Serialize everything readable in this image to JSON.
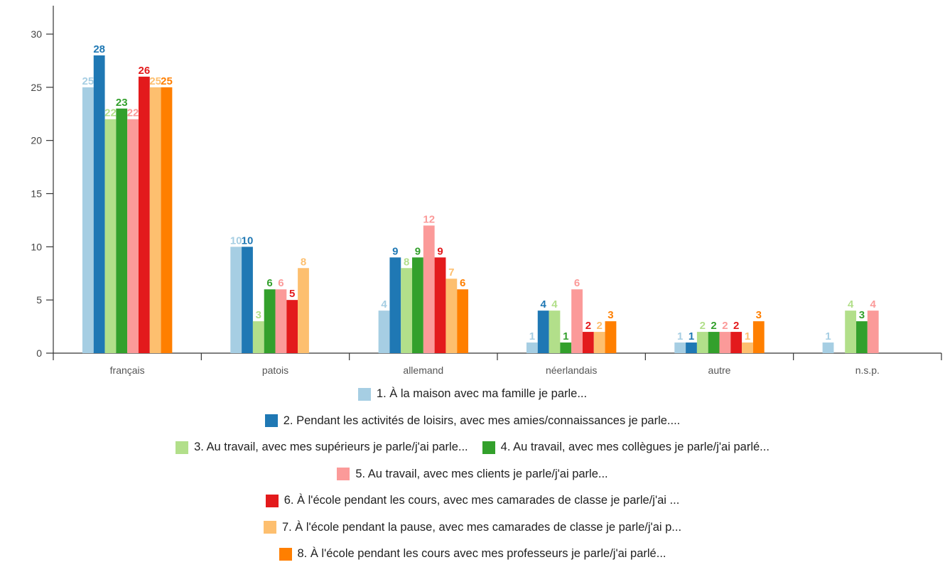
{
  "chart_data": {
    "type": "bar",
    "categories": [
      "français",
      "patois",
      "allemand",
      "néerlandais",
      "autre",
      "n.s.p."
    ],
    "ylim": [
      0,
      30
    ],
    "yticks": [
      0,
      5,
      10,
      15,
      20,
      25,
      30
    ],
    "grid": false,
    "legend_position": "bottom",
    "series": [
      {
        "name": "1. À la maison avec ma famille je parle...",
        "color": "#a6cee3",
        "values": [
          25,
          10,
          4,
          1,
          1,
          1
        ]
      },
      {
        "name": "2. Pendant les activités de loisirs, avec mes amies/connaissances je parle....",
        "color": "#1f78b4",
        "values": [
          28,
          10,
          9,
          4,
          1,
          null
        ]
      },
      {
        "name": "3. Au travail, avec mes supérieurs je parle/j'ai parle...",
        "color": "#b2df8a",
        "values": [
          22,
          3,
          8,
          4,
          2,
          4
        ]
      },
      {
        "name": "4. Au travail, avec mes collègues je parle/j'ai parlé...",
        "color": "#33a02c",
        "values": [
          23,
          6,
          9,
          1,
          2,
          3
        ]
      },
      {
        "name": "5. Au travail, avec mes clients je parle/j'ai parle...",
        "color": "#fb9a99",
        "values": [
          22,
          6,
          12,
          6,
          2,
          4
        ]
      },
      {
        "name": "6. À l'école pendant les cours, avec mes camarades de classe je parle/j'ai ...",
        "color": "#e31a1c",
        "values": [
          26,
          5,
          9,
          2,
          2,
          null
        ]
      },
      {
        "name": "7. À l'école pendant la pause, avec mes camarades de classe je parle/j'ai p...",
        "color": "#fdbf6f",
        "values": [
          25,
          8,
          7,
          2,
          1,
          null
        ]
      },
      {
        "name": "8. À l'école pendant les cours avec mes professeurs je parle/j'ai parlé...",
        "color": "#ff7f00",
        "values": [
          25,
          null,
          6,
          3,
          3,
          null
        ]
      }
    ]
  },
  "legend_rows": [
    [
      0
    ],
    [
      1
    ],
    [
      2,
      3
    ],
    [
      4
    ],
    [
      5
    ],
    [
      6
    ],
    [
      7
    ]
  ]
}
